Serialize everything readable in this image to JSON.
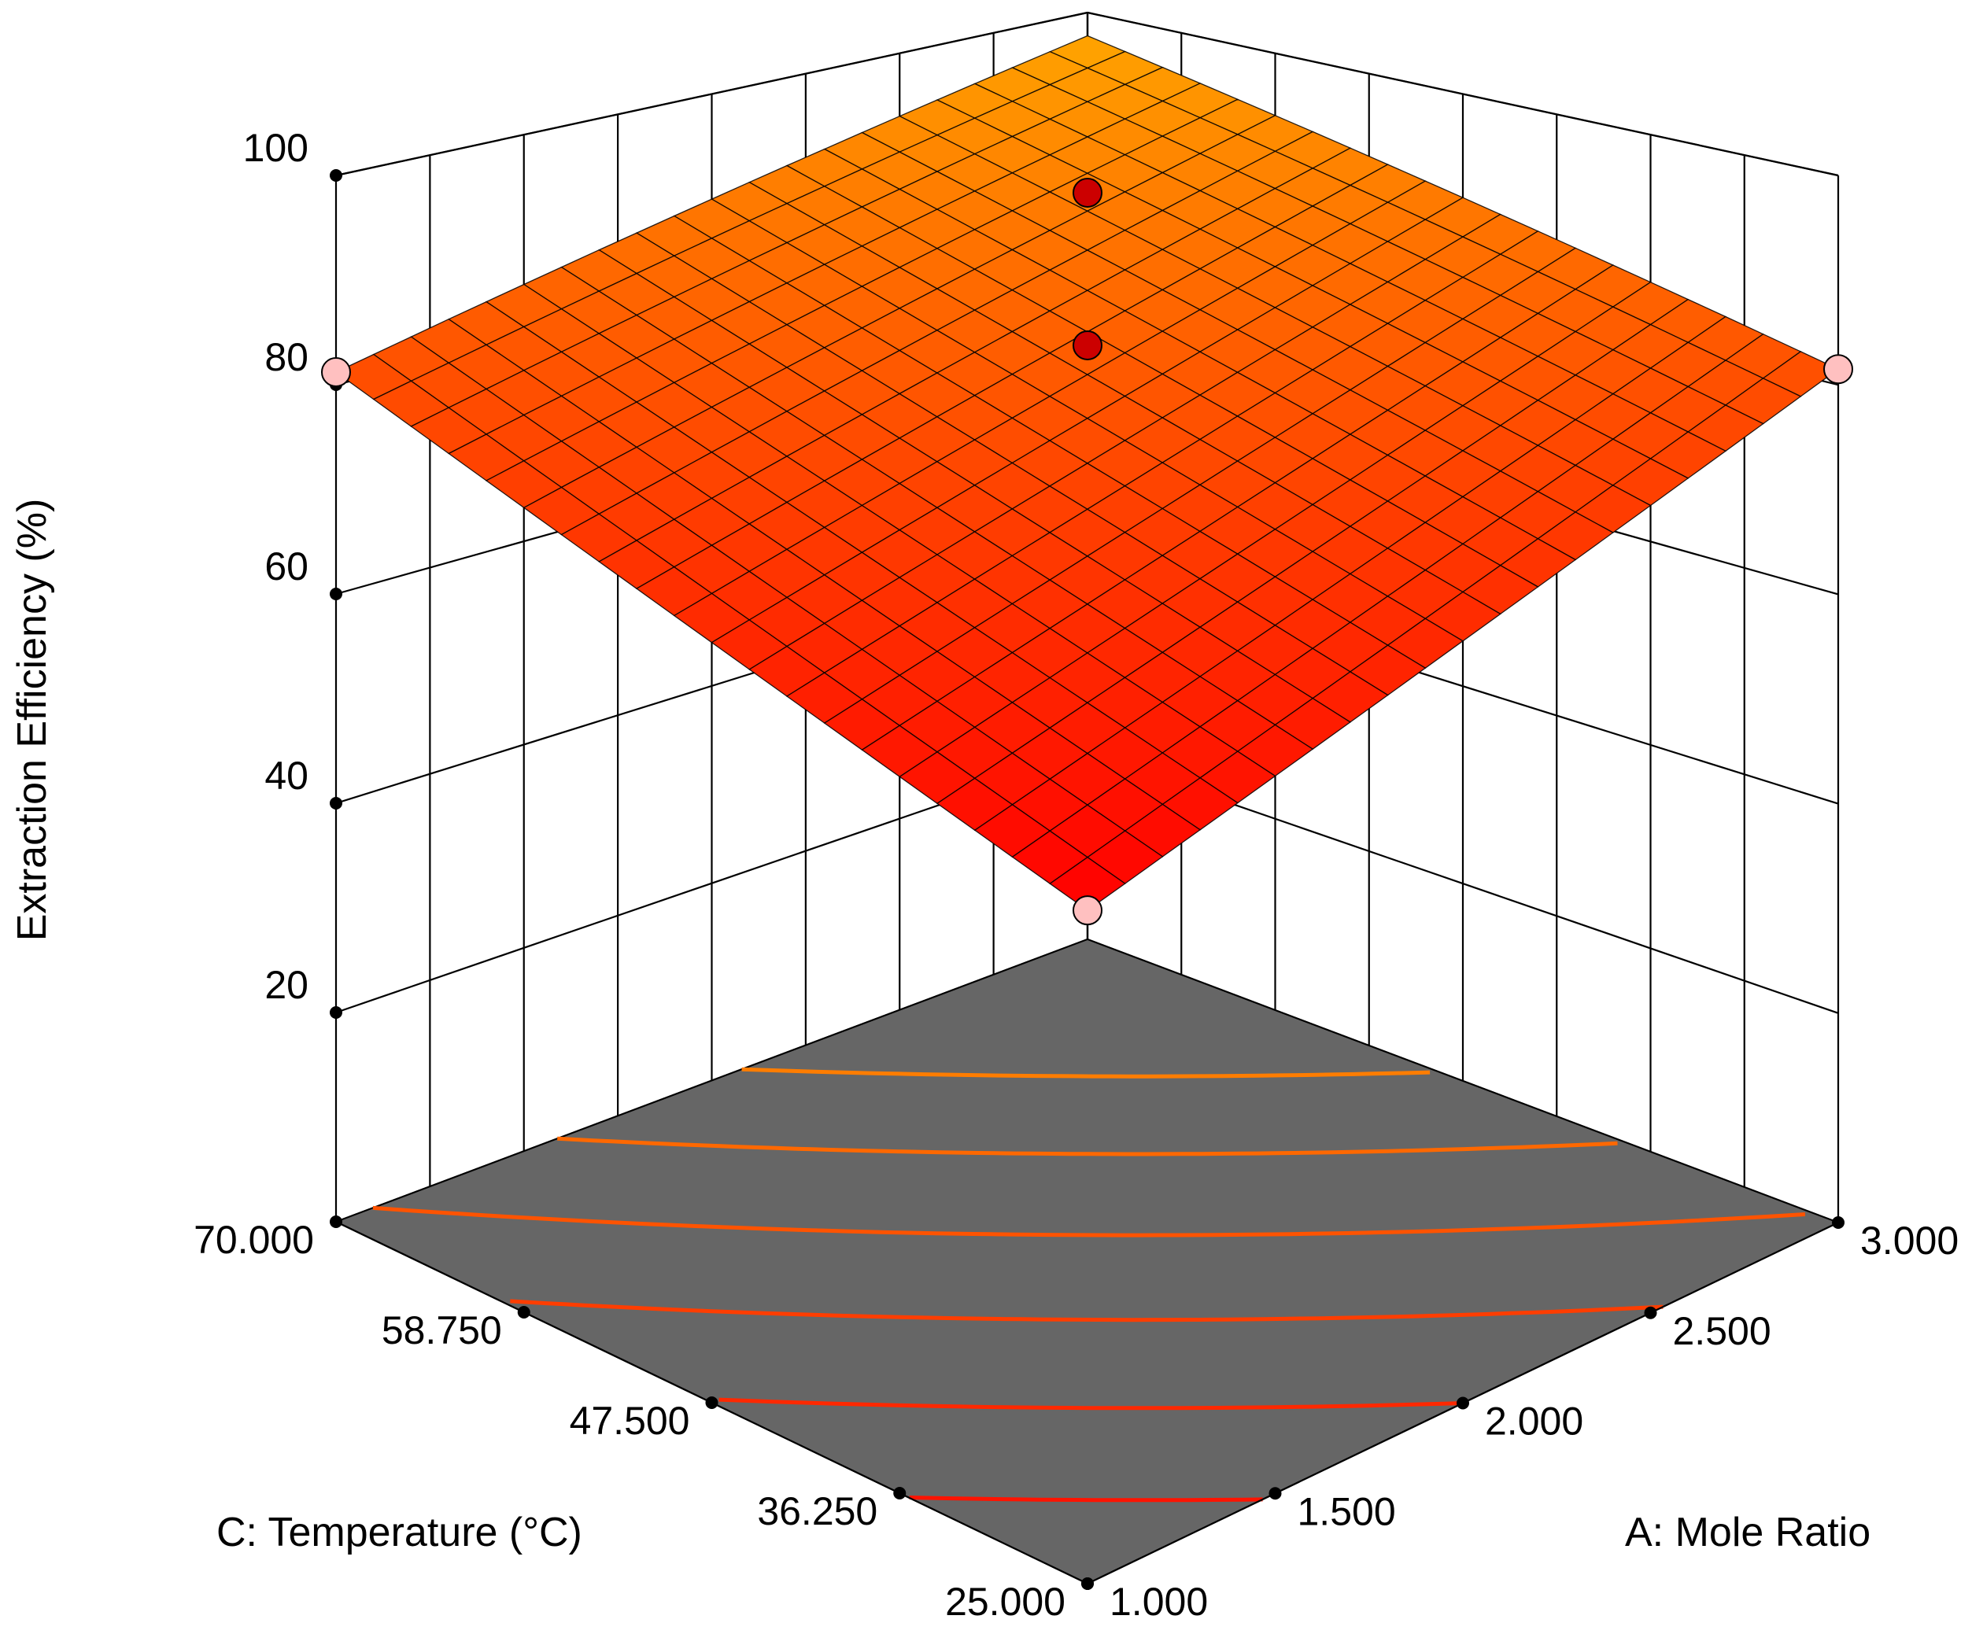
{
  "chart_data": {
    "type": "surface",
    "zlabel": "Extraction Efficiency (%)",
    "xlabel": "A: Mole Ratio",
    "ylabel": "C: Temperature (°C)",
    "z_ticks": [
      "20",
      "40",
      "60",
      "80",
      "100"
    ],
    "x_ticks": [
      "1.000",
      "1.500",
      "2.000",
      "2.500",
      "3.000"
    ],
    "y_ticks": [
      "25.000",
      "36.250",
      "47.500",
      "58.750",
      "70.000"
    ],
    "xlim": [
      1.0,
      3.0
    ],
    "ylim": [
      25.0,
      70.0
    ],
    "zlim": [
      0,
      100
    ],
    "grid": true,
    "floor_color": "#666666",
    "surface_colors": {
      "low": "#ff0000",
      "high": "#ffa500"
    },
    "surface_corners": [
      {
        "x": 1.0,
        "y": 25.0,
        "z": 66.5
      },
      {
        "x": 3.0,
        "y": 25.0,
        "z": 81.5
      },
      {
        "x": 1.0,
        "y": 70.0,
        "z": 81.2
      },
      {
        "x": 3.0,
        "y": 70.0,
        "z": 97.5
      }
    ],
    "points": [
      {
        "x": 3.0,
        "y": 70.0,
        "z": 97.5,
        "color": "#cc0000"
      },
      {
        "x": 3.0,
        "y": 70.0,
        "z": 80.0,
        "color": "#cc0000"
      },
      {
        "x": 1.0,
        "y": 70.0,
        "z": 81.2,
        "color": "#ffc0c0"
      },
      {
        "x": 3.0,
        "y": 25.0,
        "z": 81.5,
        "color": "#ffc0c0"
      },
      {
        "x": 1.0,
        "y": 25.0,
        "z": 66.5,
        "color": "#ffc0c0"
      }
    ],
    "contour_levels": [
      70,
      74,
      78,
      82,
      86,
      90
    ]
  }
}
